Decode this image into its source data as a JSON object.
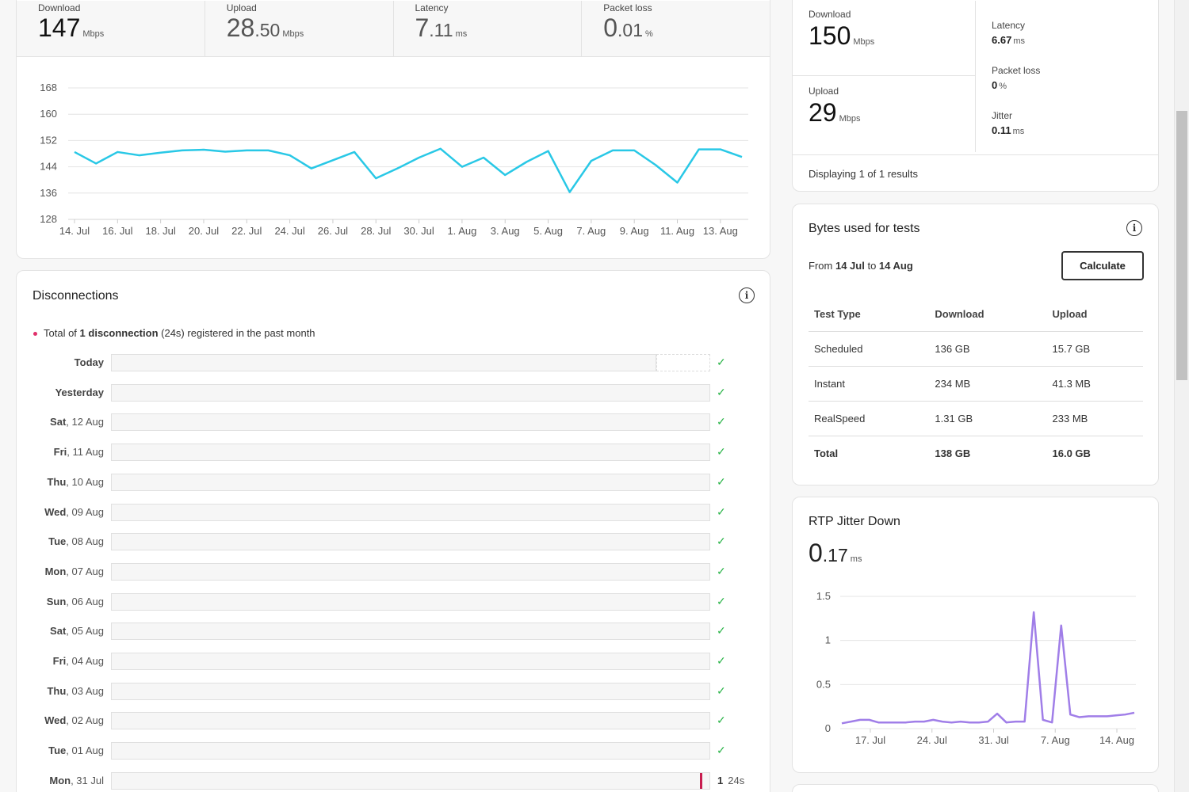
{
  "speed": {
    "metrics": [
      {
        "label": "Download",
        "int": "147",
        "dec": "",
        "unit": "Mbps"
      },
      {
        "label": "Upload",
        "int": "28",
        "dec": ".50",
        "unit": "Mbps"
      },
      {
        "label": "Latency",
        "int": "7",
        "dec": ".11",
        "unit": "ms"
      },
      {
        "label": "Packet loss",
        "int": "0",
        "dec": ".01",
        "unit": "%"
      }
    ]
  },
  "summary": {
    "download": {
      "label": "Download",
      "value": "150",
      "unit": "Mbps"
    },
    "upload": {
      "label": "Upload",
      "value": "29",
      "unit": "Mbps"
    },
    "latency": {
      "label": "Latency",
      "value": "6.67",
      "unit": "ms"
    },
    "packet_loss": {
      "label": "Packet loss",
      "value": "0",
      "unit": "%"
    },
    "jitter": {
      "label": "Jitter",
      "value": "0.11",
      "unit": "ms"
    },
    "displaying": "Displaying 1 of 1 results"
  },
  "bytes": {
    "title": "Bytes used for tests",
    "range_from_prefix": "From",
    "range_from": "14 Jul",
    "range_to_prefix": "to",
    "range_to": "14 Aug",
    "calculate_label": "Calculate",
    "headers": [
      "Test Type",
      "Download",
      "Upload"
    ],
    "rows": [
      [
        "Scheduled",
        "136 GB",
        "15.7 GB"
      ],
      [
        "Instant",
        "234 MB",
        "41.3 MB"
      ],
      [
        "RealSpeed",
        "1.31 GB",
        "233 MB"
      ]
    ],
    "total": [
      "Total",
      "138 GB",
      "16.0 GB"
    ]
  },
  "rtp": {
    "title": "RTP Jitter Down",
    "int": "0",
    "dec": ".17",
    "unit": "ms"
  },
  "disconnections": {
    "title": "Disconnections",
    "summary_prefix": "Total of",
    "summary_count": "1 disconnection",
    "summary_duration": "(24s)",
    "summary_suffix": "registered in the past month",
    "days": [
      {
        "day": "Today",
        "date": "",
        "status": "ok"
      },
      {
        "day": "Yesterday",
        "date": "",
        "status": "ok"
      },
      {
        "day": "Sat",
        "date": ", 12 Aug",
        "status": "ok"
      },
      {
        "day": "Fri",
        "date": ", 11 Aug",
        "status": "ok"
      },
      {
        "day": "Thu",
        "date": ", 10 Aug",
        "status": "ok"
      },
      {
        "day": "Wed",
        "date": ", 09 Aug",
        "status": "ok"
      },
      {
        "day": "Tue",
        "date": ", 08 Aug",
        "status": "ok"
      },
      {
        "day": "Mon",
        "date": ", 07 Aug",
        "status": "ok"
      },
      {
        "day": "Sun",
        "date": ", 06 Aug",
        "status": "ok"
      },
      {
        "day": "Sat",
        "date": ", 05 Aug",
        "status": "ok"
      },
      {
        "day": "Fri",
        "date": ", 04 Aug",
        "status": "ok"
      },
      {
        "day": "Thu",
        "date": ", 03 Aug",
        "status": "ok"
      },
      {
        "day": "Wed",
        "date": ", 02 Aug",
        "status": "ok"
      },
      {
        "day": "Tue",
        "date": ", 01 Aug",
        "status": "ok"
      },
      {
        "day": "Mon",
        "date": ", 31 Jul",
        "status": "disconnected",
        "count": "1",
        "duration": "24s",
        "position": 0.985
      }
    ],
    "today_elapsed_fraction": 0.91
  },
  "colors": {
    "download_line": "#29c8e6",
    "jitter_line": "#a07ee8",
    "check": "#2cb54a",
    "disconnect": "#c81e50"
  },
  "chart_data": [
    {
      "type": "line",
      "title": "",
      "xlabel": "",
      "ylabel": "",
      "ylim": [
        128,
        168
      ],
      "yticks": [
        168,
        160,
        152,
        144,
        136,
        128
      ],
      "x_tick_labels": [
        "14. Jul",
        "16. Jul",
        "18. Jul",
        "20. Jul",
        "22. Jul",
        "24. Jul",
        "26. Jul",
        "28. Jul",
        "30. Jul",
        "1. Aug",
        "3. Aug",
        "5. Aug",
        "7. Aug",
        "9. Aug",
        "11. Aug",
        "13. Aug"
      ],
      "x_day_range": [
        "14 Jul",
        "14 Aug"
      ],
      "grid": true,
      "series": [
        {
          "values": [
            148.5,
            145,
            148.5,
            147.5,
            148.3,
            149,
            149.2,
            148.6,
            149,
            149,
            147.5,
            143.5,
            146,
            148.5,
            140.5,
            143.5,
            146.8,
            149.5,
            144,
            146.8,
            141.5,
            145.5,
            148.8,
            136.3,
            145.8,
            149,
            149,
            144.5,
            139.2,
            149.3,
            149.3,
            147
          ]
        }
      ]
    },
    {
      "type": "line",
      "title": "",
      "xlabel": "",
      "ylabel": "",
      "ylim": [
        0,
        1.5
      ],
      "yticks": [
        1.5,
        1,
        0.5,
        0
      ],
      "x_tick_labels": [
        "17. Jul",
        "24. Jul",
        "31. Jul",
        "7. Aug",
        "14. Aug"
      ],
      "grid": true,
      "series": [
        {
          "values": [
            0.06,
            0.08,
            0.1,
            0.1,
            0.07,
            0.07,
            0.07,
            0.07,
            0.08,
            0.08,
            0.1,
            0.08,
            0.07,
            0.08,
            0.07,
            0.07,
            0.08,
            0.17,
            0.07,
            0.08,
            0.08,
            1.32,
            0.1,
            0.07,
            1.17,
            0.16,
            0.13,
            0.14,
            0.14,
            0.14,
            0.15,
            0.16,
            0.18
          ]
        }
      ]
    }
  ]
}
